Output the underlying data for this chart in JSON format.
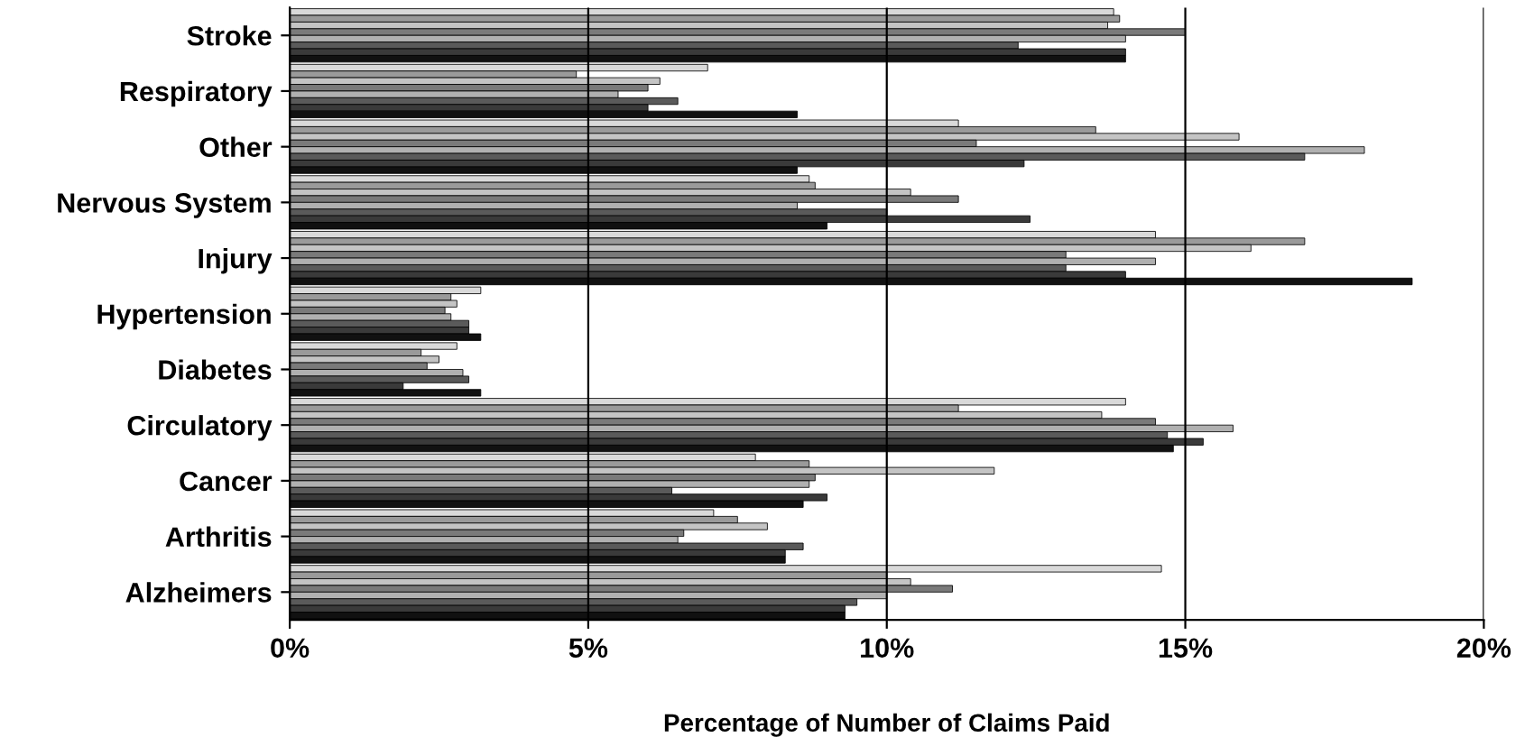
{
  "chart_data": {
    "type": "bar",
    "orientation": "horizontal",
    "xlabel": "Percentage of Number of Claims Paid",
    "categories": [
      "Stroke",
      "Respiratory",
      "Other",
      "Nervous System",
      "Injury",
      "Hypertension",
      "Diabetes",
      "Circulatory",
      "Cancer",
      "Arthritis",
      "Alzheimers"
    ],
    "series": [
      {
        "color": "#d9d9d9",
        "values": [
          13.8,
          7.0,
          11.2,
          8.7,
          14.5,
          3.2,
          2.8,
          14.0,
          7.8,
          7.1,
          14.6
        ]
      },
      {
        "color": "#9a9a9a",
        "values": [
          13.9,
          4.8,
          13.5,
          8.8,
          17.0,
          2.7,
          2.2,
          11.2,
          8.7,
          7.5,
          10.0
        ]
      },
      {
        "color": "#c4c4c4",
        "values": [
          13.7,
          6.2,
          15.9,
          10.4,
          16.1,
          2.8,
          2.5,
          13.6,
          11.8,
          8.0,
          10.4
        ]
      },
      {
        "color": "#7a7a7a",
        "values": [
          15.0,
          6.0,
          11.5,
          11.2,
          13.0,
          2.6,
          2.3,
          14.5,
          8.8,
          6.6,
          11.1
        ]
      },
      {
        "color": "#b0b0b0",
        "values": [
          14.0,
          5.5,
          18.0,
          8.5,
          14.5,
          2.7,
          2.9,
          15.8,
          8.7,
          6.5,
          10.0
        ]
      },
      {
        "color": "#5a5a5a",
        "values": [
          12.2,
          6.5,
          17.0,
          10.0,
          13.0,
          3.0,
          3.0,
          14.7,
          6.4,
          8.6,
          9.5
        ]
      },
      {
        "color": "#3a3a3a",
        "values": [
          14.0,
          6.0,
          12.3,
          12.4,
          14.0,
          3.0,
          1.9,
          15.3,
          9.0,
          8.3,
          9.3
        ]
      },
      {
        "color": "#111111",
        "values": [
          14.0,
          8.5,
          8.5,
          9.0,
          18.8,
          3.2,
          3.2,
          14.8,
          8.6,
          8.3,
          9.3
        ]
      }
    ],
    "xlim": [
      0,
      20
    ],
    "xticks": [
      {
        "value": 0,
        "label": "0%"
      },
      {
        "value": 5,
        "label": "5%"
      },
      {
        "value": 10,
        "label": "10%"
      },
      {
        "value": 15,
        "label": "15%"
      },
      {
        "value": 20,
        "label": "20%"
      }
    ],
    "grid": "x"
  }
}
